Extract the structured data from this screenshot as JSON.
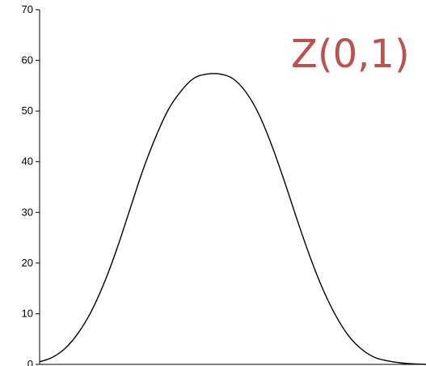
{
  "chart_data": {
    "type": "line",
    "title": "",
    "xlabel": "",
    "ylabel": "",
    "annotation": "Z(0,1)",
    "ylim": [
      0,
      70
    ],
    "xlim": [
      -3.5,
      4.0
    ],
    "yticks": [
      0,
      10,
      20,
      30,
      40,
      50,
      60,
      70
    ],
    "ytick_labels": [
      "0",
      "10",
      "20",
      "30",
      "40",
      "50",
      "60",
      "70"
    ],
    "grid": false,
    "legend": "none",
    "series": [
      {
        "x": [
          -3.5,
          -3.25,
          -3.0,
          -2.75,
          -2.5,
          -2.25,
          -2.0,
          -1.75,
          -1.5,
          -1.25,
          -1.0,
          -0.75,
          -0.5,
          -0.25,
          0.0,
          0.25,
          0.5,
          0.75,
          1.0,
          1.25,
          1.5,
          1.75,
          2.0,
          2.25,
          2.5,
          2.75,
          3.0,
          3.25,
          3.5,
          3.75,
          4.0
        ],
        "values": [
          0.5,
          1.4,
          3.2,
          6.2,
          10.4,
          16.0,
          22.8,
          30.5,
          38.2,
          44.8,
          50.3,
          54.0,
          56.5,
          57.3,
          57.3,
          56.4,
          53.8,
          49.5,
          43.4,
          36.2,
          28.5,
          21.2,
          14.8,
          9.6,
          5.6,
          3.0,
          1.4,
          0.7,
          0.3,
          0.1,
          0.0
        ],
        "color": "#000000"
      }
    ],
    "colors": {
      "axis": "#000000",
      "curve": "#000000",
      "annotation": "#c0504d",
      "background": "#ffffff"
    }
  }
}
